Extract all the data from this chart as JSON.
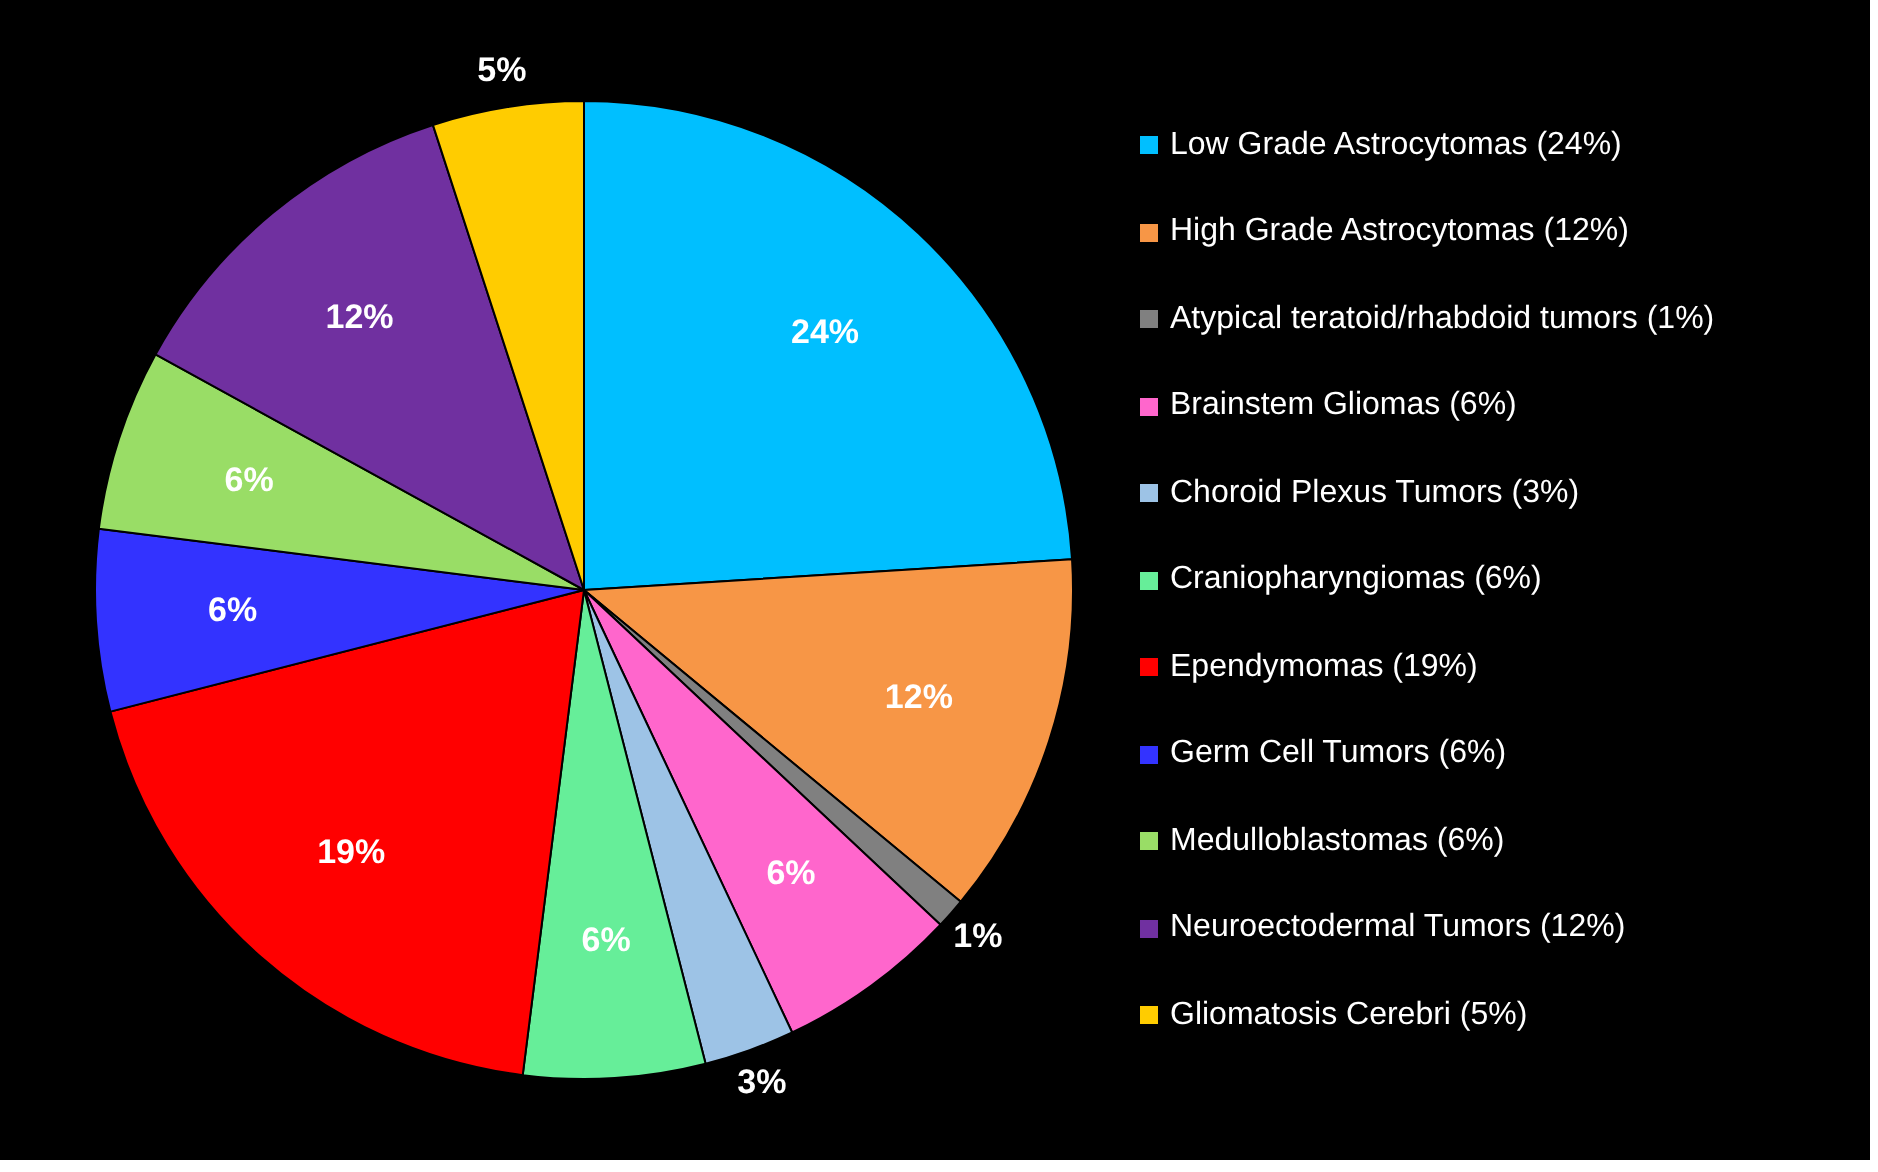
{
  "chart_data": {
    "type": "pie",
    "categories": [
      "Low Grade Astrocytomas (24%)",
      "High Grade Astrocytomas (12%)",
      "Atypical teratoid/rhabdoid tumors (1%)",
      "Brainstem Gliomas (6%)",
      "Choroid Plexus Tumors (3%)",
      "Craniopharyngiomas (6%)",
      "Ependymomas (19%)",
      "Germ Cell Tumors (6%)",
      "Medulloblastomas (6%)",
      "Neuroectodermal Tumors (12%)",
      "Gliomatosis Cerebri (5%)"
    ],
    "values": [
      24,
      12,
      1,
      6,
      3,
      6,
      19,
      6,
      6,
      12,
      5
    ],
    "value_labels": [
      "24%",
      "12%",
      "1%",
      "6%",
      "3%",
      "6%",
      "19%",
      "6%",
      "6%",
      "12%",
      "5%"
    ],
    "colors": [
      "#00bfff",
      "#f79646",
      "#808080",
      "#ff66cc",
      "#9dc3e6",
      "#66ee99",
      "#ff0000",
      "#3333ff",
      "#99dd66",
      "#7030a0",
      "#ffcc00"
    ],
    "legend": "right"
  }
}
